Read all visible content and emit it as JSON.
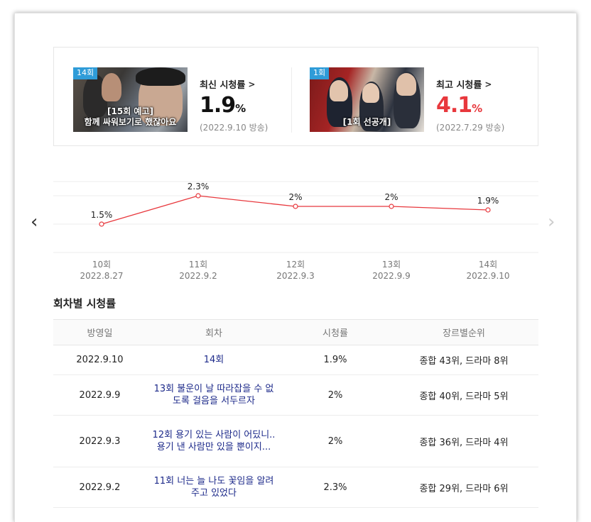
{
  "summary": {
    "latest": {
      "episode_tag": "14회",
      "thumb_caption_line1": "[15회 예고]",
      "thumb_caption_line2": "함께 싸워보기로 했잖아요",
      "label": "최신 시청률",
      "chevron": ">",
      "value": "1.9",
      "unit": "%",
      "date": "(2022.9.10 방송)"
    },
    "best": {
      "episode_tag": "1회",
      "thumb_caption_line1": "[1회 선공개]",
      "label": "최고 시청률",
      "chevron": ">",
      "value": "4.1",
      "unit": "%",
      "date": "(2022.7.29 방송)",
      "color": "#e8383d"
    }
  },
  "nav": {
    "prev_icon": "‹",
    "next_icon": "›"
  },
  "chart_data": {
    "type": "line",
    "categories": [
      "10회",
      "11회",
      "12회",
      "13회",
      "14회"
    ],
    "dates": [
      "2022.8.27",
      "2022.9.2",
      "2022.9.3",
      "2022.9.9",
      "2022.9.10"
    ],
    "values": [
      1.5,
      2.3,
      2.0,
      2.0,
      1.9
    ],
    "data_labels": [
      "1.5%",
      "2.3%",
      "2%",
      "2%",
      "1.9%"
    ],
    "ylim": [
      0,
      2.3
    ],
    "line_color": "#e8383d",
    "grid": true
  },
  "table": {
    "title": "회차별 시청률",
    "headers": [
      "방영일",
      "회차",
      "시청률",
      "장르별순위"
    ],
    "rows": [
      {
        "date": "2022.9.10",
        "episode": "14회",
        "rating": "1.9%",
        "rank": "종합 43위, 드라마 8위"
      },
      {
        "date": "2022.9.9",
        "episode": "13회 불운이 날 따라잡을 수 없도록 걸음을 서두르자",
        "rating": "2%",
        "rank": "종합 40위, 드라마 5위"
      },
      {
        "date": "2022.9.3",
        "episode": "12회 용기 있는 사람이 어딨니.. 용기 낸 사람만 있을 뿐이지...",
        "rating": "2%",
        "rank": "종합 36위, 드라마 4위"
      },
      {
        "date": "2022.9.2",
        "episode": "11회 너는 늘 나도 꽃임을 알려주고 있었다",
        "rating": "2.3%",
        "rank": "종합 29위, 드라마 6위"
      }
    ]
  }
}
